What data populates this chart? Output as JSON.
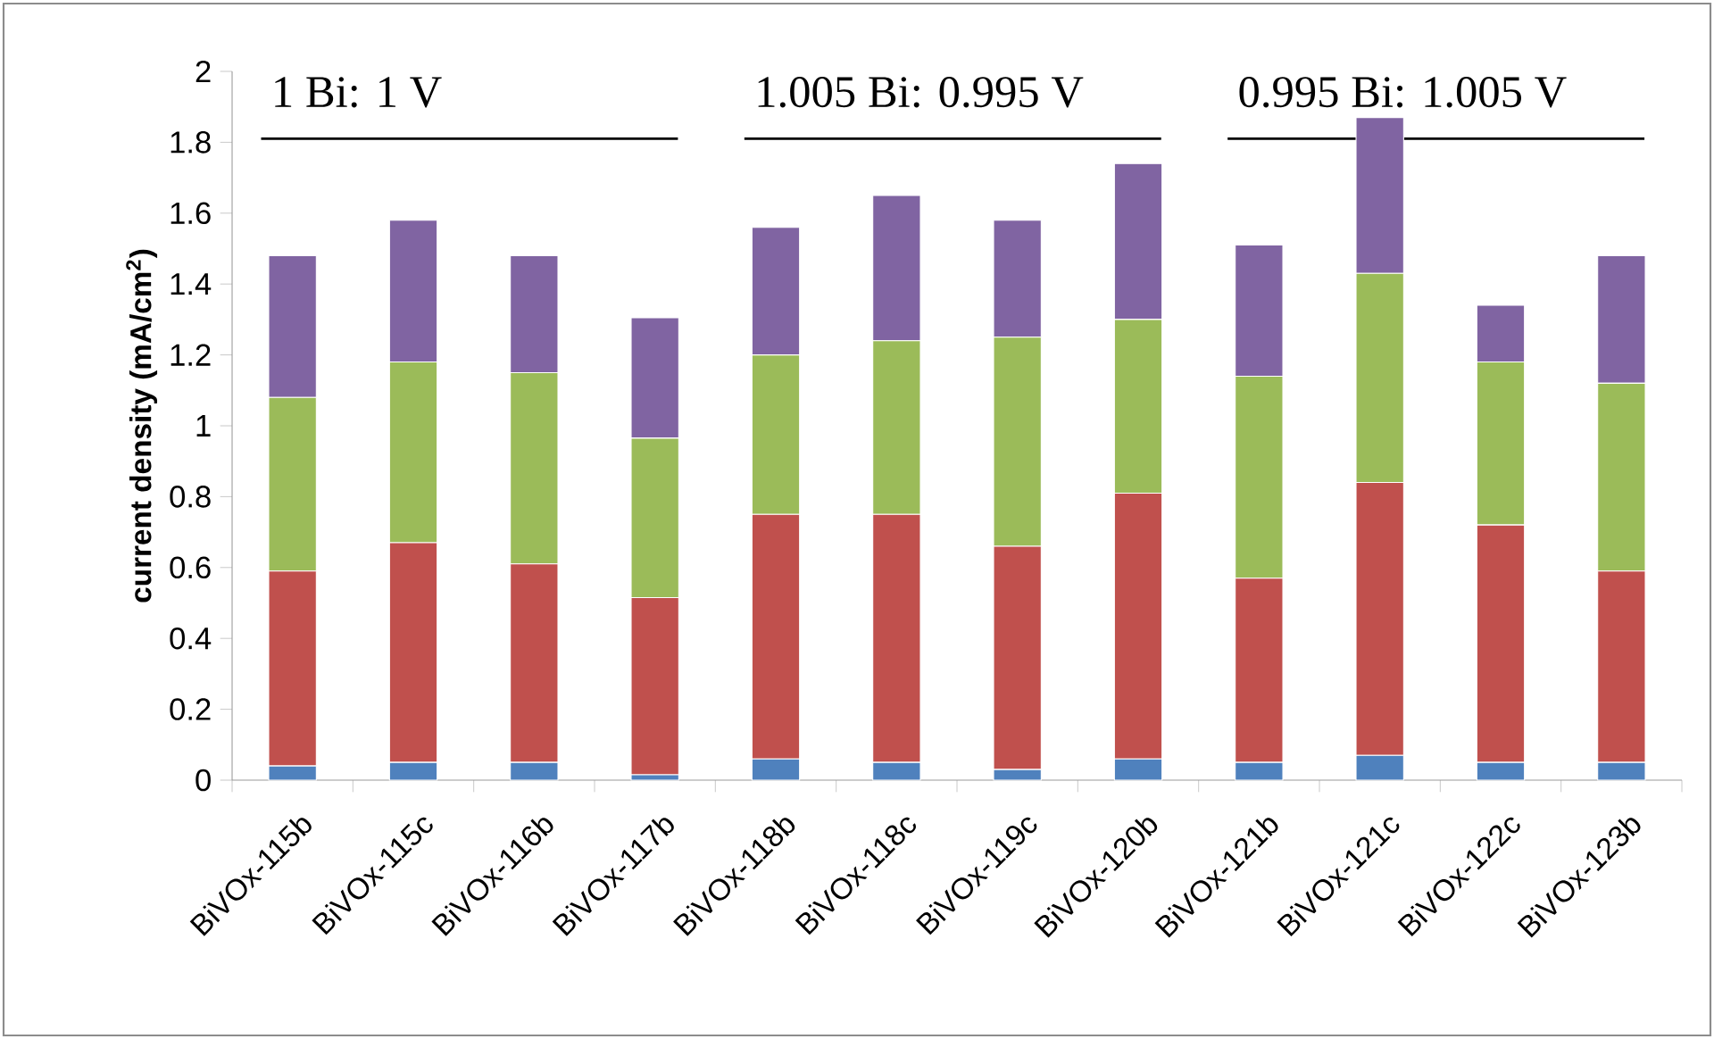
{
  "chart_data": {
    "type": "bar",
    "stacked": true,
    "ylabel": "current density (mA/cm$^{2}$)",
    "categories": [
      "BiVOx-115b",
      "BiVOx-115c",
      "BiVOx-116b",
      "BiVOx-117b",
      "BiVOx-118b",
      "BiVOx-118c",
      "BiVOx-119c",
      "BiVOx-120b",
      "BiVOx-121b",
      "BiVOx-121c",
      "BiVOx-122c",
      "BiVOx-123b"
    ],
    "series": [
      {
        "color": "#4f81bd",
        "values": [
          0.04,
          0.05,
          0.05,
          0.015,
          0.06,
          0.05,
          0.03,
          0.06,
          0.05,
          0.07,
          0.05,
          0.05
        ]
      },
      {
        "color": "#c0504d",
        "values": [
          0.55,
          0.62,
          0.56,
          0.5,
          0.69,
          0.7,
          0.63,
          0.75,
          0.52,
          0.77,
          0.67,
          0.54
        ]
      },
      {
        "color": "#9bbb59",
        "values": [
          0.49,
          0.51,
          0.54,
          0.45,
          0.45,
          0.49,
          0.59,
          0.49,
          0.57,
          0.59,
          0.46,
          0.53
        ]
      },
      {
        "color": "#8064a2",
        "values": [
          0.4,
          0.4,
          0.33,
          0.34,
          0.36,
          0.41,
          0.33,
          0.44,
          0.37,
          0.44,
          0.16,
          0.36
        ]
      }
    ],
    "ylim": [
      0,
      2
    ],
    "yticks": [
      0,
      0.2,
      0.4,
      0.6,
      0.8,
      1,
      1.2,
      1.4,
      1.6,
      1.8,
      2
    ],
    "grid": false,
    "annotations": [
      "1 Bi: 1 V",
      "1.005 Bi: 0.995 V",
      "0.995 Bi: 1.005 V"
    ]
  }
}
